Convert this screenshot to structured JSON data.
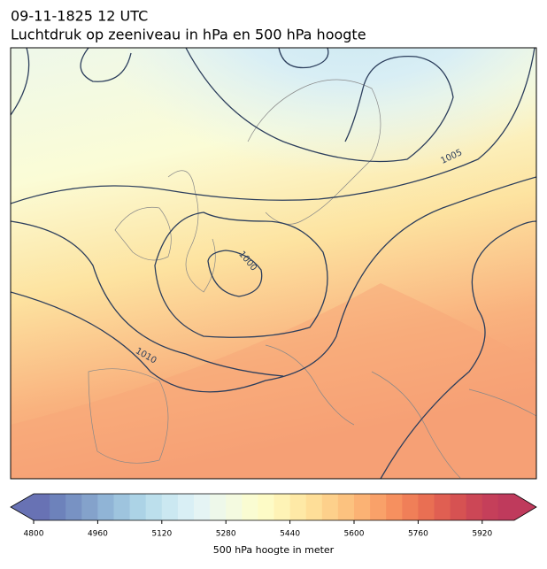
{
  "title": {
    "line1": "09-11-1825 12 UTC",
    "line2": "Luchtdruk op zeeniveau in hPa en 500 hPa hoogte"
  },
  "contour_labels": [
    "1005",
    "1000",
    "1010"
  ],
  "colorbar": {
    "label": "500 hPa hoogte in meter",
    "lim": [
      4800,
      6000
    ],
    "ticks": [
      4800,
      4960,
      5120,
      5280,
      5440,
      5600,
      5760,
      5920
    ],
    "colors": [
      "#6872b4",
      "#6d82bb",
      "#7892c3",
      "#84a2cb",
      "#90b4d6",
      "#9ec4de",
      "#acd3e6",
      "#bcdfec",
      "#cbe8f1",
      "#d9eff5",
      "#e5f4f4",
      "#eef8ea",
      "#f4fae0",
      "#fafcd2",
      "#fdfbc6",
      "#fef3b6",
      "#fee9a6",
      "#fede98",
      "#fdd08b",
      "#fcc27f",
      "#fbb274",
      "#f9a169",
      "#f6905f",
      "#f07f58",
      "#e96f53",
      "#e05f52",
      "#d65252",
      "#cc4756",
      "#c53f5a",
      "#bf3a5c"
    ]
  }
}
